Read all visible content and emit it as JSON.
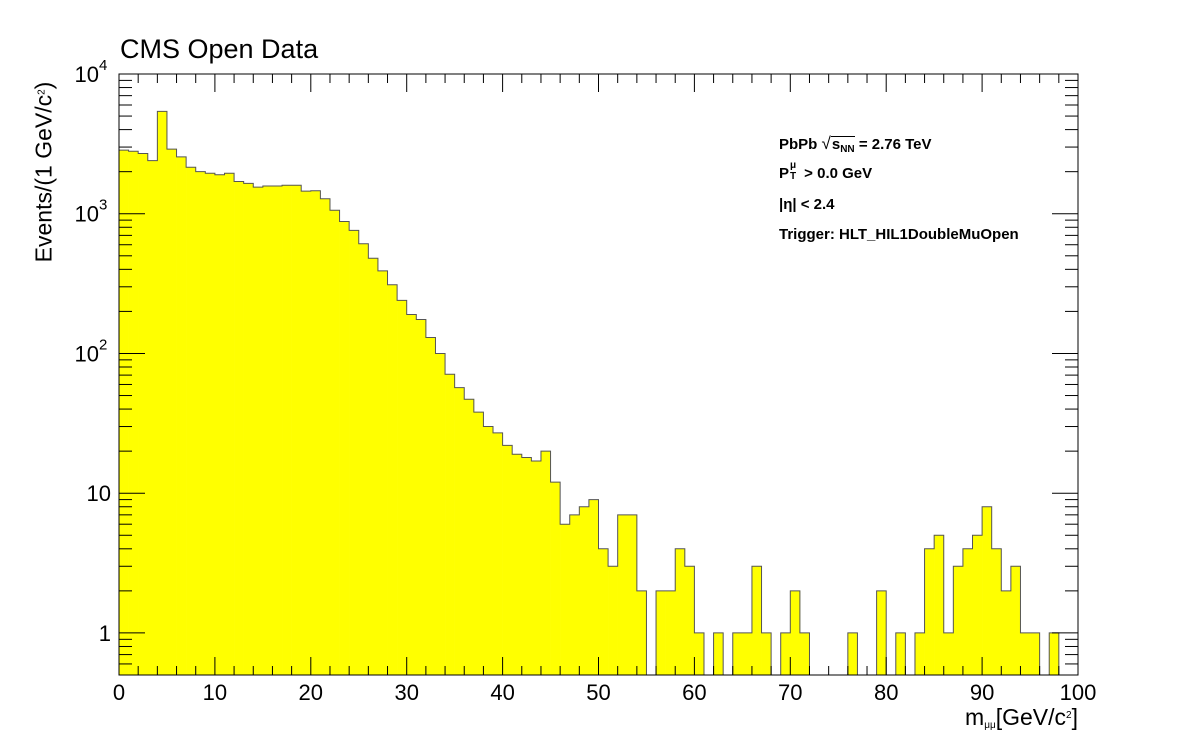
{
  "chart_data": {
    "type": "bar",
    "title": "CMS Open Data",
    "ylabel": "Events/(1 GeV/c²)",
    "xlabel": "mμμ[GeV/c²]",
    "x_range": [
      0,
      100
    ],
    "y_range": [
      0.5,
      10000
    ],
    "y_scale": "log",
    "bin_width": 1,
    "fill_color": "#ffff00",
    "line_color": "#555555",
    "x_ticks": [
      "0",
      "10",
      "20",
      "30",
      "40",
      "50",
      "60",
      "70",
      "80",
      "90",
      "100"
    ],
    "y_ticks": [
      {
        "value": 1,
        "label": "1"
      },
      {
        "value": 10,
        "label": "10"
      },
      {
        "value": 100,
        "label": "10",
        "exp": "2"
      },
      {
        "value": 1000,
        "label": "10",
        "exp": "3"
      },
      {
        "value": 10000,
        "label": "10",
        "exp": "4"
      }
    ],
    "values": [
      2850,
      2800,
      2700,
      2400,
      5400,
      2900,
      2550,
      2150,
      2000,
      1950,
      1900,
      1950,
      1700,
      1650,
      1550,
      1580,
      1580,
      1600,
      1600,
      1450,
      1460,
      1280,
      1060,
      880,
      760,
      610,
      480,
      390,
      310,
      240,
      190,
      175,
      130,
      100,
      71,
      57,
      47,
      38,
      30,
      27,
      22,
      19,
      18,
      17,
      20,
      12,
      6,
      7,
      8,
      9,
      4,
      3,
      7,
      7,
      2,
      0,
      2,
      2,
      4,
      3,
      1,
      0,
      1,
      0,
      1,
      1,
      3,
      1,
      0,
      1,
      2,
      1,
      0,
      0,
      0,
      0,
      1,
      0,
      0,
      2,
      0,
      1,
      0,
      1,
      4,
      5,
      1,
      3,
      4,
      5,
      8,
      4,
      2,
      3,
      1,
      1,
      0,
      1,
      0,
      0
    ]
  },
  "legend": {
    "line1_a": "PbPb ",
    "line1_sqrt": "s",
    "line1_sub": "NN",
    "line1_b": " = 2.76 TeV",
    "line2_a": "P",
    "line2_sup": "μ",
    "line2_sub": "T",
    "line2_b": " > 0.0 GeV",
    "line3": "|η|  < 2.4",
    "line4": "Trigger: HLT_HIL1DoubleMuOpen"
  },
  "axes_text": {
    "y_main": "Events/(1 GeV/c",
    "y_sup": "2",
    "y_end": ")",
    "x_main": "m",
    "x_sub": "μμ",
    "x_unit": "[GeV/c",
    "x_sup": "2",
    "x_end": "]"
  }
}
